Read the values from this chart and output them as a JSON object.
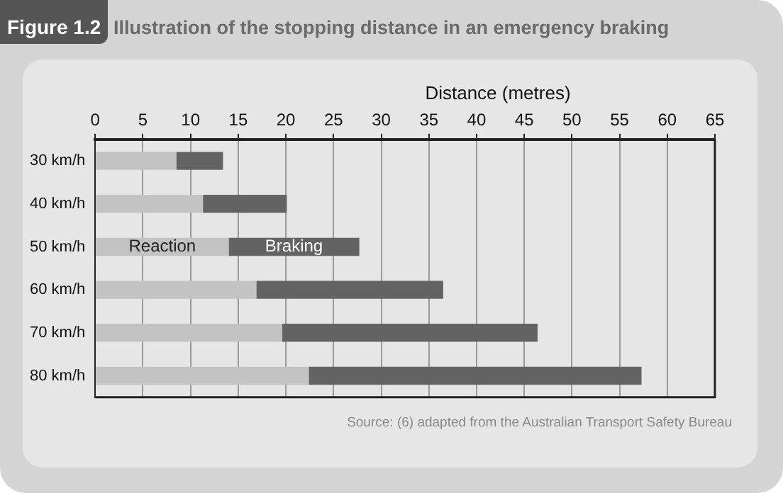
{
  "chart_data": {
    "type": "bar",
    "orientation": "horizontal",
    "stacked": true,
    "title": "Illustration of the stopping distance in an emergency braking",
    "xlabel": "Distance (metres)",
    "categories": [
      "30 km/h",
      "40 km/h",
      "50 km/h",
      "60 km/h",
      "70 km/h",
      "80 km/h"
    ],
    "series": [
      {
        "name": "Reaction",
        "color": "#c3c3c3",
        "values": [
          8.5,
          11.3,
          14.0,
          16.9,
          19.6,
          22.4
        ]
      },
      {
        "name": "Braking",
        "color": "#636363",
        "values": [
          4.9,
          8.8,
          13.7,
          19.6,
          26.8,
          34.9
        ]
      }
    ],
    "xlim": [
      0,
      65
    ],
    "xticks": [
      0,
      5,
      10,
      15,
      20,
      25,
      30,
      35,
      40,
      45,
      50,
      55,
      60,
      65
    ],
    "grid": "x",
    "legend": false,
    "annotations": [
      "Figure 1.2",
      "Source: (6) adapted from the Australian Transport Safety Bureau"
    ]
  }
}
